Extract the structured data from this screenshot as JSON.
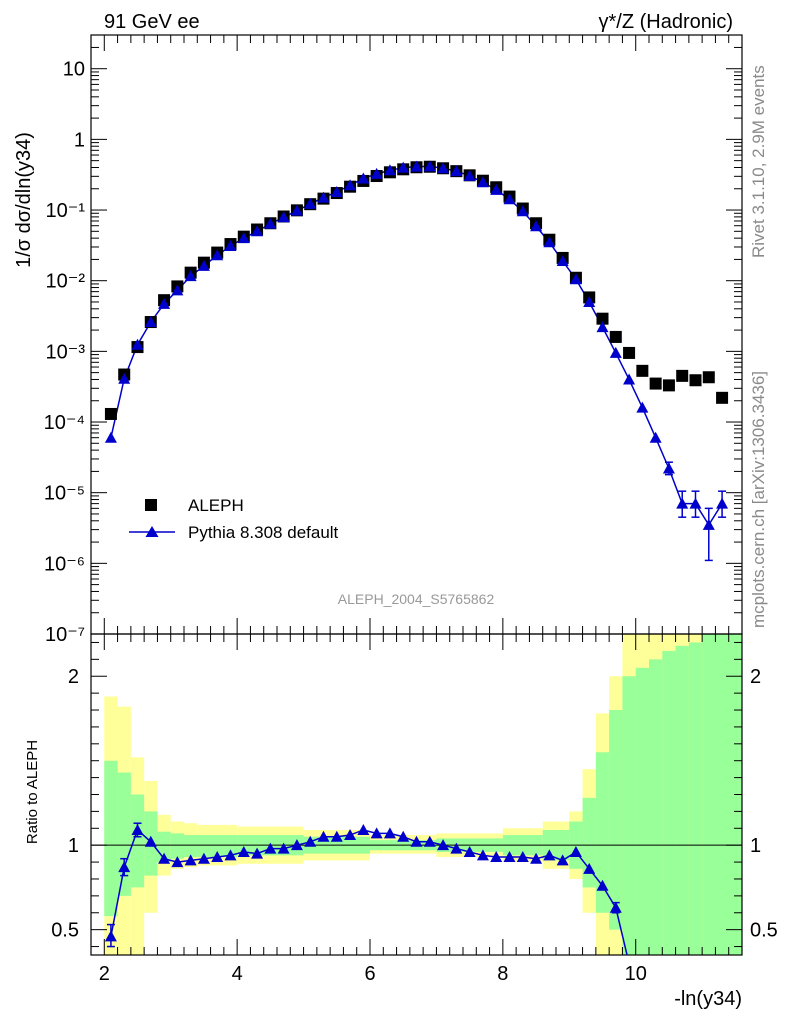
{
  "header": {
    "left": "91 GeV ee",
    "right": "γ*/Z (Hadronic)"
  },
  "side_labels": {
    "rivet": "Rivet 3.1.10,  2.9M events",
    "mcplots": "mcplots.cern.ch [arXiv:1306.3436]"
  },
  "chart_data": [
    {
      "type": "scatter",
      "panel": "main",
      "analysis_label": "ALEPH_2004_S5765862",
      "ylabel": "1/σ  dσ/dln(y34)",
      "yscale": "log",
      "ylim": [
        1e-07,
        30
      ],
      "xlim": [
        1.8,
        11.6
      ],
      "yticks": [
        {
          "value": 1e-07,
          "label": "10⁻⁷"
        },
        {
          "value": 1e-06,
          "label": "10⁻⁶"
        },
        {
          "value": 1e-05,
          "label": "10⁻⁵"
        },
        {
          "value": 0.0001,
          "label": "10⁻⁴"
        },
        {
          "value": 0.001,
          "label": "10⁻³"
        },
        {
          "value": 0.01,
          "label": "10⁻²"
        },
        {
          "value": 0.1,
          "label": "10⁻¹"
        },
        {
          "value": 1,
          "label": "1"
        },
        {
          "value": 10,
          "label": "10"
        }
      ],
      "legend_position": "bottom-left",
      "series": [
        {
          "name": "ALEPH",
          "marker": "square",
          "color": "#000000",
          "points": [
            [
              2.1,
              0.00013
            ],
            [
              2.3,
              0.00047
            ],
            [
              2.5,
              0.00115
            ],
            [
              2.7,
              0.0026
            ],
            [
              2.9,
              0.0053
            ],
            [
              3.1,
              0.0083
            ],
            [
              3.3,
              0.013
            ],
            [
              3.5,
              0.018
            ],
            [
              3.7,
              0.025
            ],
            [
              3.9,
              0.033
            ],
            [
              4.1,
              0.042
            ],
            [
              4.3,
              0.053
            ],
            [
              4.5,
              0.065
            ],
            [
              4.7,
              0.081
            ],
            [
              4.9,
              0.099
            ],
            [
              5.1,
              0.121
            ],
            [
              5.3,
              0.145
            ],
            [
              5.5,
              0.174
            ],
            [
              5.7,
              0.214
            ],
            [
              5.9,
              0.258
            ],
            [
              6.1,
              0.303
            ],
            [
              6.3,
              0.342
            ],
            [
              6.5,
              0.377
            ],
            [
              6.7,
              0.403
            ],
            [
              6.9,
              0.41
            ],
            [
              7.1,
              0.39
            ],
            [
              7.3,
              0.355
            ],
            [
              7.5,
              0.31
            ],
            [
              7.7,
              0.26
            ],
            [
              7.9,
              0.21
            ],
            [
              8.1,
              0.155
            ],
            [
              8.3,
              0.105
            ],
            [
              8.5,
              0.065
            ],
            [
              8.7,
              0.038
            ],
            [
              8.9,
              0.021
            ],
            [
              9.1,
              0.011
            ],
            [
              9.3,
              0.0058
            ],
            [
              9.5,
              0.0029
            ],
            [
              9.7,
              0.0016
            ],
            [
              9.9,
              0.00095
            ],
            [
              10.1,
              0.00053
            ],
            [
              10.3,
              0.00035
            ],
            [
              10.5,
              0.00033
            ],
            [
              10.7,
              0.00045
            ],
            [
              10.9,
              0.00039
            ],
            [
              11.1,
              0.00043
            ],
            [
              11.3,
              0.00022
            ]
          ]
        },
        {
          "name": "Pythia 8.308 default",
          "marker": "triangle",
          "color": "#0000cc",
          "points": [
            [
              2.1,
              6e-05
            ],
            [
              2.3,
              0.00041
            ],
            [
              2.5,
              0.00124
            ],
            [
              2.7,
              0.0026
            ],
            [
              2.9,
              0.0047
            ],
            [
              3.1,
              0.0073
            ],
            [
              3.3,
              0.0116
            ],
            [
              3.5,
              0.0162
            ],
            [
              3.7,
              0.0229
            ],
            [
              3.9,
              0.031
            ],
            [
              4.1,
              0.04
            ],
            [
              4.3,
              0.05
            ],
            [
              4.5,
              0.064
            ],
            [
              4.7,
              0.079
            ],
            [
              4.9,
              0.098
            ],
            [
              5.1,
              0.122
            ],
            [
              5.3,
              0.15
            ],
            [
              5.5,
              0.18
            ],
            [
              5.7,
              0.224
            ],
            [
              5.9,
              0.28
            ],
            [
              6.1,
              0.325
            ],
            [
              6.3,
              0.365
            ],
            [
              6.5,
              0.398
            ],
            [
              6.7,
              0.412
            ],
            [
              6.9,
              0.415
            ],
            [
              7.1,
              0.391
            ],
            [
              7.3,
              0.355
            ],
            [
              7.5,
              0.305
            ],
            [
              7.7,
              0.247
            ],
            [
              7.9,
              0.193
            ],
            [
              8.1,
              0.142
            ],
            [
              8.3,
              0.096
            ],
            [
              8.5,
              0.059
            ],
            [
              8.7,
              0.035
            ],
            [
              8.9,
              0.019
            ],
            [
              9.1,
              0.0105
            ],
            [
              9.3,
              0.005
            ],
            [
              9.5,
              0.0022
            ],
            [
              9.7,
              0.00095
            ],
            [
              9.9,
              0.0004
            ],
            [
              10.1,
              0.00016
            ],
            [
              10.3,
              6e-05
            ],
            [
              10.5,
              2.2e-05
            ],
            [
              10.7,
              7e-06
            ],
            [
              10.9,
              7e-06
            ],
            [
              11.1,
              3.5e-06
            ],
            [
              11.3,
              7e-06
            ]
          ],
          "errors": [
            {
              "x": 10.5,
              "lo": 1.8e-05,
              "hi": 2.7e-05
            },
            {
              "x": 10.7,
              "lo": 4.5e-06,
              "hi": 1.05e-05
            },
            {
              "x": 10.9,
              "lo": 4.5e-06,
              "hi": 1.05e-05
            },
            {
              "x": 11.1,
              "lo": 1.1e-06,
              "hi": 6e-06
            },
            {
              "x": 11.3,
              "lo": 4.5e-06,
              "hi": 1.05e-05
            }
          ]
        }
      ]
    },
    {
      "type": "line",
      "panel": "ratio",
      "ylabel": "Ratio to ALEPH",
      "xlabel": "-ln(y34)",
      "ylim": [
        0.35,
        2.25
      ],
      "xlim": [
        1.8,
        11.6
      ],
      "yticks": [
        0.5,
        1,
        2
      ],
      "xticks": [
        2,
        4,
        6,
        8,
        10
      ],
      "bands": [
        {
          "name": "yellow",
          "color": "#ffff99",
          "bins": [
            [
              2.0,
              2.2,
              0.35,
              1.88
            ],
            [
              2.2,
              2.4,
              0.35,
              1.82
            ],
            [
              2.4,
              2.6,
              0.35,
              1.52
            ],
            [
              2.6,
              2.8,
              0.6,
              1.38
            ],
            [
              2.8,
              3.0,
              0.82,
              1.18
            ],
            [
              3.0,
              3.2,
              0.86,
              1.14
            ],
            [
              3.2,
              3.4,
              0.87,
              1.13
            ],
            [
              3.4,
              4.0,
              0.88,
              1.12
            ],
            [
              4.0,
              5.0,
              0.89,
              1.11
            ],
            [
              5.0,
              6.0,
              0.91,
              1.09
            ],
            [
              6.0,
              7.0,
              0.95,
              1.06
            ],
            [
              7.0,
              8.0,
              0.93,
              1.07
            ],
            [
              8.0,
              8.6,
              0.9,
              1.1
            ],
            [
              8.6,
              9.0,
              0.86,
              1.14
            ],
            [
              9.0,
              9.2,
              0.8,
              1.2
            ],
            [
              9.2,
              9.4,
              0.6,
              1.45
            ],
            [
              9.4,
              9.6,
              0.35,
              1.78
            ],
            [
              9.6,
              9.8,
              0.35,
              2.0
            ],
            [
              9.8,
              11.6,
              0.35,
              2.25
            ]
          ]
        },
        {
          "name": "green",
          "color": "#99ff99",
          "bins": [
            [
              2.0,
              2.2,
              0.58,
              1.5
            ],
            [
              2.2,
              2.4,
              0.7,
              1.43
            ],
            [
              2.4,
              2.6,
              0.75,
              1.3
            ],
            [
              2.6,
              2.8,
              0.82,
              1.2
            ],
            [
              2.8,
              3.0,
              0.9,
              1.08
            ],
            [
              3.0,
              3.2,
              0.92,
              1.07
            ],
            [
              3.2,
              4.0,
              0.93,
              1.06
            ],
            [
              4.0,
              5.0,
              0.94,
              1.06
            ],
            [
              5.0,
              6.0,
              0.95,
              1.05
            ],
            [
              6.0,
              7.0,
              0.97,
              1.03
            ],
            [
              7.0,
              8.0,
              0.96,
              1.04
            ],
            [
              8.0,
              8.6,
              0.94,
              1.06
            ],
            [
              8.6,
              9.0,
              0.91,
              1.09
            ],
            [
              9.0,
              9.2,
              0.86,
              1.14
            ],
            [
              9.2,
              9.4,
              0.75,
              1.28
            ],
            [
              9.4,
              9.6,
              0.6,
              1.55
            ],
            [
              9.6,
              9.8,
              0.5,
              1.8
            ],
            [
              9.8,
              10.0,
              0.35,
              2.0
            ],
            [
              10.0,
              10.2,
              0.35,
              2.05
            ],
            [
              10.2,
              10.4,
              0.35,
              2.1
            ],
            [
              10.4,
              10.6,
              0.35,
              2.15
            ],
            [
              10.6,
              10.8,
              0.35,
              2.18
            ],
            [
              10.8,
              11.0,
              0.35,
              2.2
            ],
            [
              11.0,
              11.6,
              0.35,
              2.25
            ]
          ]
        }
      ],
      "series": [
        {
          "name": "Pythia 8.308 default",
          "color": "#0000cc",
          "x": [
            2.1,
            2.3,
            2.5,
            2.7,
            2.9,
            3.1,
            3.3,
            3.5,
            3.7,
            3.9,
            4.1,
            4.3,
            4.5,
            4.7,
            4.9,
            5.1,
            5.3,
            5.5,
            5.7,
            5.9,
            6.1,
            6.3,
            6.5,
            6.7,
            6.9,
            7.1,
            7.3,
            7.5,
            7.7,
            7.9,
            8.1,
            8.3,
            8.5,
            8.7,
            8.9,
            9.1,
            9.3,
            9.5,
            9.7,
            9.9
          ],
          "y": [
            0.46,
            0.87,
            1.09,
            1.02,
            0.92,
            0.9,
            0.91,
            0.92,
            0.93,
            0.94,
            0.96,
            0.95,
            0.98,
            0.98,
            1.0,
            1.02,
            1.05,
            1.05,
            1.06,
            1.09,
            1.07,
            1.07,
            1.05,
            1.02,
            1.02,
            1.0,
            0.98,
            0.96,
            0.94,
            0.93,
            0.93,
            0.93,
            0.92,
            0.94,
            0.91,
            0.96,
            0.86,
            0.76,
            0.63,
            0.3
          ],
          "errors": [
            {
              "x": 2.1,
              "lo": 0.4,
              "hi": 0.53
            },
            {
              "x": 2.3,
              "lo": 0.82,
              "hi": 0.92
            },
            {
              "x": 2.5,
              "lo": 1.05,
              "hi": 1.13
            },
            {
              "x": 9.7,
              "lo": 0.6,
              "hi": 0.66
            }
          ]
        }
      ]
    }
  ]
}
